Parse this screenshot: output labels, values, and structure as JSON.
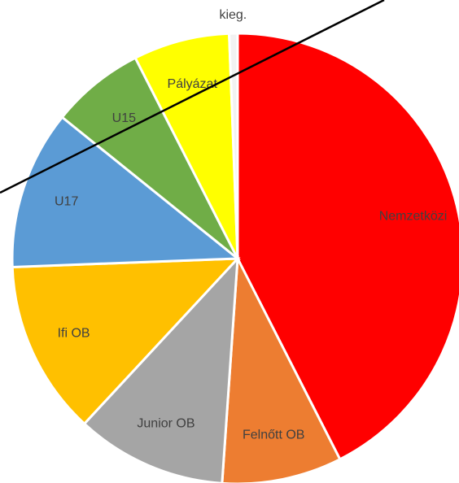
{
  "chart_data": {
    "type": "pie",
    "categories": [
      "Nemzetközi",
      "Felnőtt OB",
      "Junior OB",
      "Ifi OB",
      "U17",
      "U15",
      "Pályázat",
      "kieg."
    ],
    "values": [
      42.5,
      8.6,
      10.8,
      12.5,
      11.4,
      6.7,
      6.9,
      0.6
    ],
    "colors": [
      "#ff0000",
      "#ed7d31",
      "#a5a5a5",
      "#ffc000",
      "#5b9bd5",
      "#70ad47",
      "#ffff00",
      "#f2f2f2"
    ]
  }
}
